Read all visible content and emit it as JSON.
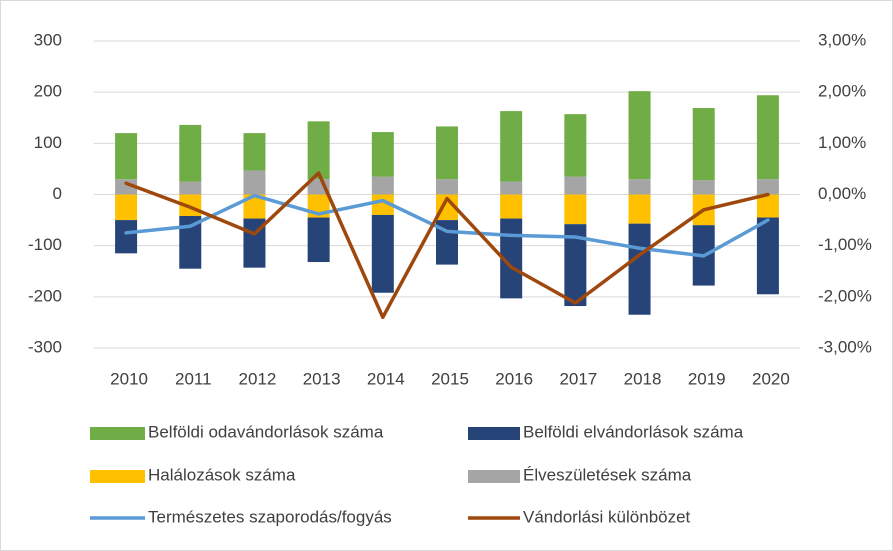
{
  "chart_data": {
    "type": "bar_line",
    "categories": [
      "2010",
      "2011",
      "2012",
      "2013",
      "2014",
      "2015",
      "2016",
      "2017",
      "2018",
      "2019",
      "2020"
    ],
    "series": [
      {
        "name": "Belföldi odavándorlások száma",
        "color": "#70ad47",
        "kind": "bar",
        "values": [
          90,
          111,
          73,
          113,
          87,
          103,
          138,
          122,
          172,
          141,
          164
        ]
      },
      {
        "name": "Belföldi elvándorlások száma",
        "color": "#264478",
        "kind": "bar",
        "values": [
          -65,
          -103,
          -96,
          -87,
          -152,
          -87,
          -156,
          -160,
          -178,
          -118,
          -150
        ]
      },
      {
        "name": "Halálozások száma",
        "color": "#ffc000",
        "kind": "bar",
        "values": [
          -50,
          -42,
          -47,
          -45,
          -40,
          -50,
          -47,
          -58,
          -57,
          -60,
          -45
        ]
      },
      {
        "name": "Élveszületések száma",
        "color": "#a5a5a5",
        "kind": "bar",
        "values": [
          30,
          25,
          47,
          30,
          35,
          30,
          25,
          35,
          30,
          28,
          30
        ]
      },
      {
        "name": "Természetes szaporodás/fogyás",
        "color": "#5b9bd5",
        "kind": "line",
        "axis": "y2",
        "values": [
          -0.75,
          -0.62,
          -0.02,
          -0.38,
          -0.12,
          -0.72,
          -0.8,
          -0.83,
          -1.05,
          -1.2,
          -0.5
        ]
      },
      {
        "name": "Vándorlási különbözet",
        "color": "#9e480e",
        "kind": "line",
        "axis": "y2",
        "values": [
          0.22,
          -0.25,
          -0.77,
          0.42,
          -2.4,
          -0.08,
          -1.42,
          -2.12,
          -1.18,
          -0.3,
          0.0
        ]
      }
    ],
    "ylim": [
      -300,
      300
    ],
    "yticks": [
      -300,
      -200,
      -100,
      0,
      100,
      200,
      300
    ],
    "y2lim": [
      -3,
      3
    ],
    "y2ticks": [
      {
        "value": -3,
        "label": "-3,00%"
      },
      {
        "value": -2,
        "label": "-2,00%"
      },
      {
        "value": -1,
        "label": "-1,00%"
      },
      {
        "value": 0,
        "label": "0,00%"
      },
      {
        "value": 1,
        "label": "1,00%"
      },
      {
        "value": 2,
        "label": "2,00%"
      },
      {
        "value": 3,
        "label": "3,00%"
      }
    ],
    "grid": true,
    "legend": "bottom"
  }
}
